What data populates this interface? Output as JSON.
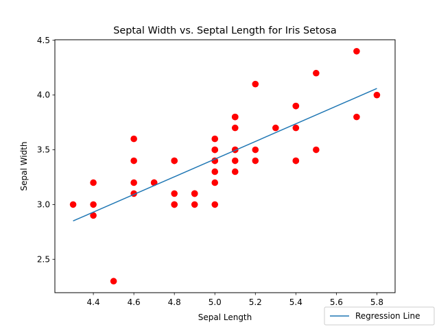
{
  "chart_data": {
    "type": "scatter",
    "title": "Septal Width vs. Septal Length for Iris Setosa",
    "xlabel": "Sepal Length",
    "ylabel": "Sepal Width",
    "xlim": [
      4.21,
      5.89
    ],
    "ylim": [
      2.195,
      4.505
    ],
    "xticks": [
      "4.4",
      "4.6",
      "4.8",
      "5.0",
      "5.2",
      "5.4",
      "5.6",
      "5.8"
    ],
    "yticks": [
      "2.5",
      "3.0",
      "3.5",
      "4.0",
      "4.5"
    ],
    "grid": false,
    "legend_position": "outside-bottom-right",
    "series": [
      {
        "kind": "scatter",
        "color": "#ff0000",
        "points": [
          [
            5.1,
            3.5
          ],
          [
            4.9,
            3.0
          ],
          [
            4.7,
            3.2
          ],
          [
            4.6,
            3.1
          ],
          [
            5.0,
            3.6
          ],
          [
            5.4,
            3.9
          ],
          [
            4.6,
            3.4
          ],
          [
            5.0,
            3.4
          ],
          [
            4.4,
            2.9
          ],
          [
            4.9,
            3.1
          ],
          [
            5.4,
            3.7
          ],
          [
            4.8,
            3.4
          ],
          [
            4.8,
            3.0
          ],
          [
            4.3,
            3.0
          ],
          [
            5.8,
            4.0
          ],
          [
            5.7,
            4.4
          ],
          [
            5.4,
            3.9
          ],
          [
            5.1,
            3.5
          ],
          [
            5.7,
            3.8
          ],
          [
            5.1,
            3.8
          ],
          [
            5.4,
            3.4
          ],
          [
            5.1,
            3.7
          ],
          [
            4.6,
            3.6
          ],
          [
            5.1,
            3.3
          ],
          [
            4.8,
            3.4
          ],
          [
            5.0,
            3.0
          ],
          [
            5.0,
            3.4
          ],
          [
            5.2,
            3.5
          ],
          [
            5.2,
            3.4
          ],
          [
            4.7,
            3.2
          ],
          [
            4.8,
            3.1
          ],
          [
            5.4,
            3.4
          ],
          [
            5.2,
            4.1
          ],
          [
            5.5,
            4.2
          ],
          [
            4.9,
            3.1
          ],
          [
            5.0,
            3.2
          ],
          [
            5.5,
            3.5
          ],
          [
            4.9,
            3.1
          ],
          [
            4.4,
            3.0
          ],
          [
            5.1,
            3.4
          ],
          [
            5.0,
            3.5
          ],
          [
            4.5,
            2.3
          ],
          [
            4.4,
            3.2
          ],
          [
            5.0,
            3.5
          ],
          [
            5.1,
            3.8
          ],
          [
            4.8,
            3.0
          ],
          [
            5.1,
            3.8
          ],
          [
            4.6,
            3.2
          ],
          [
            5.3,
            3.7
          ],
          [
            5.0,
            3.3
          ]
        ]
      },
      {
        "kind": "line",
        "name": "Regression Line",
        "color": "#1f77b4",
        "points": [
          [
            4.3,
            2.85
          ],
          [
            5.8,
            4.06
          ]
        ]
      }
    ]
  }
}
